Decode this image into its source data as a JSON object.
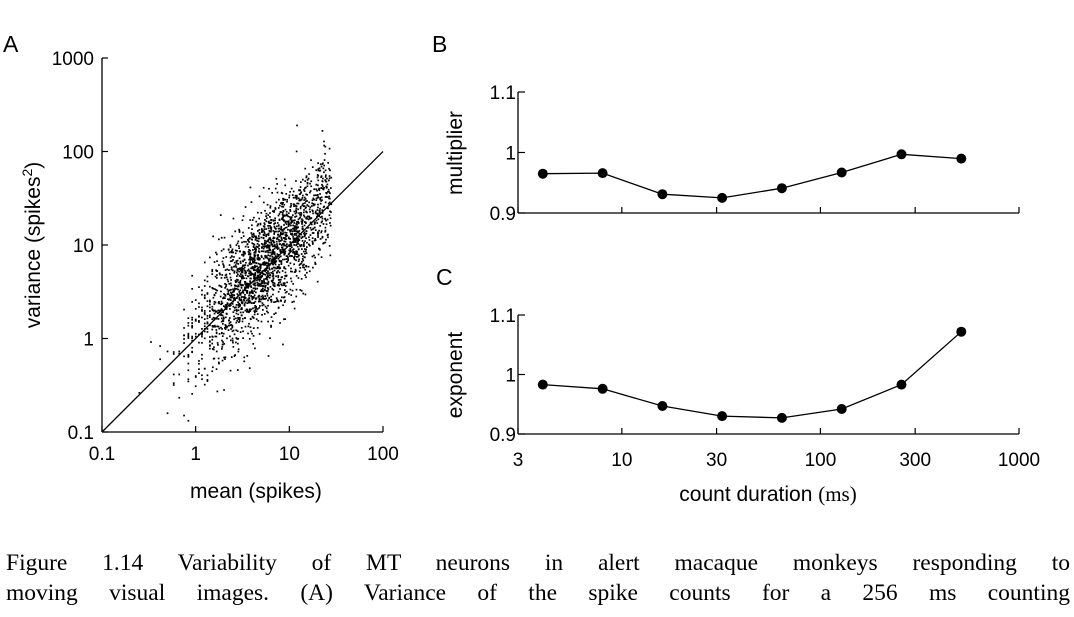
{
  "caption": {
    "line1": "Figure 1.14 Variability of MT neurons in alert macaque monkeys responding to",
    "line2": "moving visual images.  (A) Variance of the spike counts for a 256 ms counting"
  },
  "chart_data": [
    {
      "panel": "A",
      "type": "scatter",
      "xlabel": "mean (spikes)",
      "ylabel_main": "variance (spikes",
      "ylabel_sup": "2",
      "ylabel_close": ")",
      "xscale": "log",
      "yscale": "log",
      "xlim": [
        0.1,
        100
      ],
      "ylim": [
        0.1,
        1000
      ],
      "xticks": [
        0.1,
        1,
        10,
        100
      ],
      "xtick_labels": [
        "0.1",
        "1",
        "10",
        "100"
      ],
      "yticks": [
        0.1,
        1,
        10,
        100,
        1000
      ],
      "ytick_labels": [
        "0.1",
        "1",
        "10",
        "100",
        "1000"
      ],
      "reference_line": {
        "x": [
          0.1,
          100
        ],
        "y": [
          0.1,
          100
        ]
      },
      "point_cloud": {
        "count": 2200,
        "x_range": [
          0.1,
          40
        ],
        "y_range": [
          0.1,
          500
        ],
        "relation": "variance ≈ mean, log-normal scatter"
      }
    },
    {
      "panel": "B",
      "type": "line",
      "ylabel": "multiplier",
      "xscale": "log",
      "xlim": [
        3,
        1000
      ],
      "ylim": [
        0.9,
        1.1
      ],
      "yticks": [
        0.9,
        1,
        1.1
      ],
      "ytick_labels": [
        "0.9",
        "1",
        "1.1"
      ],
      "x": [
        4,
        8,
        16,
        32,
        64,
        128,
        256,
        512
      ],
      "y": [
        0.965,
        0.966,
        0.931,
        0.925,
        0.941,
        0.967,
        0.997,
        0.99
      ]
    },
    {
      "panel": "C",
      "type": "line",
      "ylabel": "exponent",
      "xlabel_main": "count duration ",
      "xlabel_unit": "(ms)",
      "xscale": "log",
      "xlim": [
        3,
        1000
      ],
      "ylim": [
        0.9,
        1.1
      ],
      "xticks": [
        3,
        10,
        30,
        100,
        300,
        1000
      ],
      "xtick_labels": [
        "3",
        "10",
        "30",
        "100",
        "300",
        "1000"
      ],
      "yticks": [
        0.9,
        1,
        1.1
      ],
      "ytick_labels": [
        "0.9",
        "1",
        "1.1"
      ],
      "x": [
        4,
        8,
        16,
        32,
        64,
        128,
        256,
        512
      ],
      "y": [
        0.983,
        0.976,
        0.947,
        0.93,
        0.927,
        0.942,
        0.983,
        1.072
      ]
    }
  ]
}
